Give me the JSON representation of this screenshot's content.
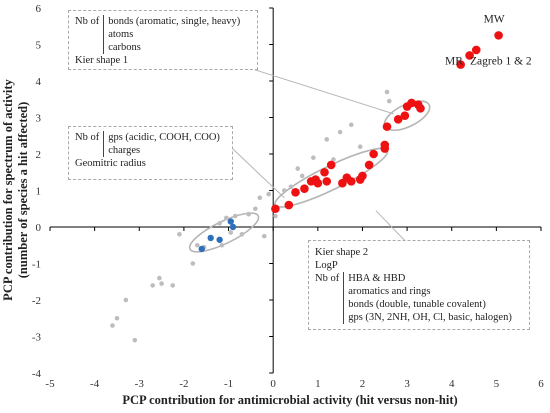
{
  "chart_data": {
    "type": "scatter",
    "xlabel": "PCP contribution for antimicrobial activity (hit versus non-hit)",
    "ylabel_line1": "PCP contribution for spectrum of activity",
    "ylabel_line2": "(number of species a hit affected)",
    "xlim": [
      -5,
      6
    ],
    "ylim": [
      -4,
      6
    ],
    "x_ticks": [
      "-5",
      "-4",
      "-3",
      "-2",
      "-1",
      "0",
      "1",
      "2",
      "3",
      "4",
      "5",
      "6"
    ],
    "y_ticks": [
      "-4",
      "-3",
      "-2",
      "-1",
      "0",
      "1",
      "2",
      "3",
      "4",
      "5",
      "6"
    ],
    "grid": false,
    "colors": {
      "grey": "#bdbdbd",
      "red": "#ee1111",
      "blue": "#2e6fba",
      "ellipse": "#b5b5b5",
      "leader": "#b5b5b5"
    },
    "series": [
      {
        "color": "grey",
        "points": [
          [
            -3.6,
            -2.7
          ],
          [
            -3.5,
            -2.5
          ],
          [
            -3.3,
            -2.0
          ],
          [
            -3.1,
            -3.1
          ],
          [
            -2.7,
            -1.6
          ],
          [
            -2.55,
            -1.4
          ],
          [
            -2.5,
            -1.55
          ],
          [
            -2.25,
            -1.6
          ],
          [
            -2.1,
            -0.2
          ],
          [
            -1.8,
            -1.0
          ],
          [
            -1.7,
            -0.5
          ],
          [
            -1.55,
            -0.55
          ],
          [
            -1.2,
            0.1
          ],
          [
            -1.15,
            -0.5
          ],
          [
            -1.05,
            0.25
          ],
          [
            -0.95,
            -0.15
          ],
          [
            -0.85,
            0.3
          ],
          [
            -0.7,
            -0.2
          ],
          [
            -0.55,
            0.35
          ],
          [
            -0.4,
            0.5
          ],
          [
            -0.3,
            0.8
          ],
          [
            -0.2,
            -0.25
          ],
          [
            -0.1,
            0.9
          ],
          [
            0.05,
            0.3
          ],
          [
            0.25,
            1.0
          ],
          [
            0.4,
            1.1
          ],
          [
            0.55,
            1.6
          ],
          [
            0.65,
            1.4
          ],
          [
            0.9,
            1.9
          ],
          [
            1.2,
            2.4
          ],
          [
            1.35,
            1.85
          ],
          [
            1.5,
            2.6
          ],
          [
            1.75,
            2.8
          ],
          [
            1.95,
            2.2
          ],
          [
            2.55,
            3.7
          ],
          [
            2.6,
            3.45
          ]
        ]
      },
      {
        "color": "red",
        "points": [
          [
            0.05,
            0.5
          ],
          [
            0.35,
            0.6
          ],
          [
            0.5,
            0.95
          ],
          [
            0.7,
            1.05
          ],
          [
            0.85,
            1.25
          ],
          [
            0.95,
            1.3
          ],
          [
            1.0,
            1.2
          ],
          [
            1.15,
            1.5
          ],
          [
            1.2,
            1.25
          ],
          [
            1.3,
            1.7
          ],
          [
            1.55,
            1.2
          ],
          [
            1.65,
            1.35
          ],
          [
            1.75,
            1.25
          ],
          [
            1.95,
            1.3
          ],
          [
            2.0,
            1.4
          ],
          [
            2.15,
            1.7
          ],
          [
            2.25,
            2.0
          ],
          [
            2.5,
            2.15
          ],
          [
            2.5,
            2.25
          ],
          [
            2.55,
            2.75
          ],
          [
            2.8,
            2.95
          ],
          [
            2.95,
            3.05
          ],
          [
            3.0,
            3.3
          ],
          [
            3.1,
            3.4
          ],
          [
            3.25,
            3.35
          ],
          [
            3.3,
            3.25
          ],
          [
            4.2,
            4.45
          ],
          [
            4.4,
            4.7
          ],
          [
            4.55,
            4.85
          ],
          [
            5.05,
            5.25
          ]
        ]
      },
      {
        "color": "blue",
        "points": [
          [
            -1.6,
            -0.6
          ],
          [
            -1.4,
            -0.3
          ],
          [
            -1.2,
            -0.35
          ],
          [
            -0.95,
            0.15
          ],
          [
            -0.9,
            0.0
          ]
        ]
      }
    ],
    "point_labels": [
      {
        "text": "MW",
        "at": [
          4.95,
          5.6
        ]
      },
      {
        "text": "MR",
        "at": [
          4.05,
          4.45
        ]
      },
      {
        "text": "Zagreb 1 & 2",
        "at": [
          5.1,
          4.45
        ]
      }
    ],
    "ellipses": [
      {
        "center": [
          -1.1,
          -0.15
        ],
        "rx": 0.85,
        "ry": 0.3,
        "angle_deg": 26
      },
      {
        "center": [
          1.3,
          1.35
        ],
        "rx": 1.4,
        "ry": 0.32,
        "angle_deg": 26
      },
      {
        "center": [
          3.0,
          3.05
        ],
        "rx": 0.55,
        "ry": 0.3,
        "angle_deg": 26
      }
    ],
    "leader_lines": [
      {
        "from": [
          -0.65,
          4.4
        ],
        "to": [
          2.7,
          3.1
        ]
      },
      {
        "from": [
          -1.0,
          2.25
        ],
        "to": [
          0.25,
          0.8
        ]
      },
      {
        "from": [
          2.3,
          0.45
        ],
        "to": [
          3.05,
          -0.5
        ]
      }
    ]
  },
  "annotations": {
    "box1": {
      "lead": "Nb of",
      "items": [
        "bonds (aromatic, single, heavy)",
        "atoms",
        "carbons"
      ],
      "tail": "Kier shape 1"
    },
    "box2": {
      "lead": "Nb of",
      "items": [
        "gps (acidic, COOH, COO)",
        "charges"
      ],
      "tail": "Geomitric radius"
    },
    "box3": {
      "pre": [
        "Kier shape 2",
        "LogP"
      ],
      "lead": "Nb of",
      "items": [
        "HBA & HBD",
        "aromatics and rings",
        "bonds (double, tunable covalent)",
        "gps (3N, 2NH, OH, Cl, basic, halogen)"
      ]
    }
  }
}
